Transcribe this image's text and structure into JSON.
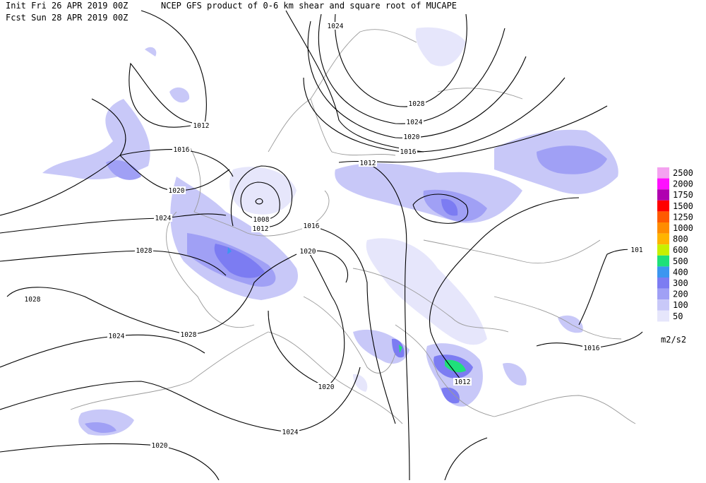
{
  "header": {
    "init": "Init  Fri 26 APR 2019 00Z",
    "title": "NCEP GFS product of 0-6 km shear and square root of MUCAPE",
    "forecast": "Fcst Sun 28 APR 2019 00Z"
  },
  "legend": {
    "items": [
      {
        "label": 2500,
        "color": "#f4a2f0"
      },
      {
        "label": 2000,
        "color": "#ff10ff"
      },
      {
        "label": 1750,
        "color": "#b000b0"
      },
      {
        "label": 1500,
        "color": "#ff0000"
      },
      {
        "label": 1250,
        "color": "#ff5a00"
      },
      {
        "label": 1000,
        "color": "#ff8c00"
      },
      {
        "label": 800,
        "color": "#ffb400"
      },
      {
        "label": 600,
        "color": "#c8f000"
      },
      {
        "label": 500,
        "color": "#1ee07a"
      },
      {
        "label": 400,
        "color": "#3c96f0"
      },
      {
        "label": 300,
        "color": "#7c7cf2"
      },
      {
        "label": 200,
        "color": "#a0a0f5"
      },
      {
        "label": 100,
        "color": "#c8c8f8"
      },
      {
        "label": 50,
        "color": "#e6e6fb"
      }
    ],
    "unit": "m2/s2"
  },
  "isobars": [
    {
      "label": "1024"
    },
    {
      "label": "1028"
    },
    {
      "label": "1024"
    },
    {
      "label": "1020"
    },
    {
      "label": "1016"
    },
    {
      "label": "1012"
    },
    {
      "label": "1012"
    },
    {
      "label": "1016"
    },
    {
      "label": "1020"
    },
    {
      "label": "1024"
    },
    {
      "label": "1028"
    },
    {
      "label": "1028"
    },
    {
      "label": "1008"
    },
    {
      "label": "1012"
    },
    {
      "label": "1016"
    },
    {
      "label": "1020"
    },
    {
      "label": "1028"
    },
    {
      "label": "1024"
    },
    {
      "label": "1020"
    },
    {
      "label": "1024"
    },
    {
      "label": "1020"
    },
    {
      "label": "1012"
    },
    {
      "label": "1016"
    },
    {
      "label": "101"
    }
  ]
}
